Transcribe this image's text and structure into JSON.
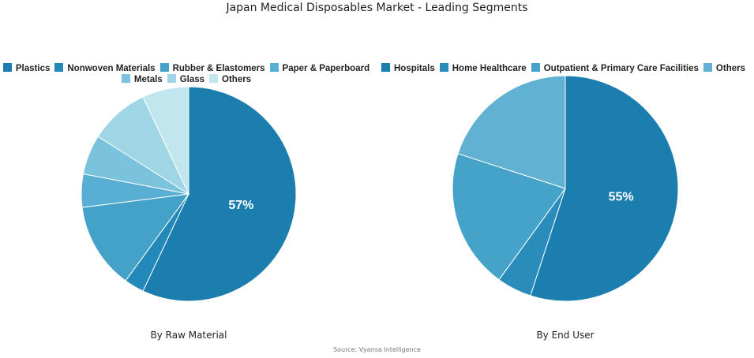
{
  "title": "Japan Medical Disposables Market - Leading Segments",
  "source": "Source: Vyansa Intelligence",
  "chart_data": [
    {
      "type": "pie",
      "caption": "By Raw Material",
      "slices": [
        {
          "label": "Plastics",
          "value": 57,
          "color": "#1c7eae",
          "data_label": "57%"
        },
        {
          "label": "Nonwoven Materials",
          "value": 3,
          "color": "#2389b8"
        },
        {
          "label": "Rubber & Elastomers",
          "value": 13,
          "color": "#44a1c8"
        },
        {
          "label": "Paper & Paperboard",
          "value": 5,
          "color": "#58aed3"
        },
        {
          "label": "Metals",
          "value": 6,
          "color": "#7bc3dd"
        },
        {
          "label": "Glass",
          "value": 9,
          "color": "#9fd5e5"
        },
        {
          "label": "Others",
          "value": 7,
          "color": "#c2e6ee"
        }
      ]
    },
    {
      "type": "pie",
      "caption": "By End User",
      "slices": [
        {
          "label": "Hospitals",
          "value": 55,
          "color": "#1c7eae",
          "data_label": "55%"
        },
        {
          "label": "Home Healthcare",
          "value": 5,
          "color": "#2a8cbb"
        },
        {
          "label": "Outpatient & Primary Care Facilities",
          "value": 20,
          "color": "#45a2c9"
        },
        {
          "label": "Others",
          "value": 20,
          "color": "#61b1d2"
        }
      ]
    }
  ]
}
